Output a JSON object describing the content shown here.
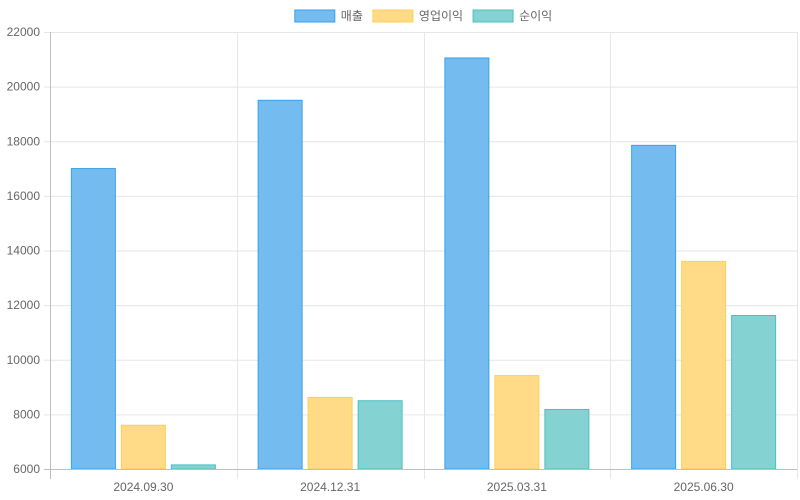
{
  "chart_data": {
    "type": "bar",
    "categories": [
      "2024.09.30",
      "2024.12.31",
      "2025.03.31",
      "2025.06.30"
    ],
    "series": [
      {
        "name": "매출",
        "values": [
          17000,
          19500,
          21050,
          17850
        ],
        "fill": "#74bcf0",
        "stroke": "#36a2eb"
      },
      {
        "name": "영업이익",
        "values": [
          7600,
          8620,
          9420,
          13600
        ],
        "fill": "#ffdb87",
        "stroke": "#ffce56"
      },
      {
        "name": "순이익",
        "values": [
          6150,
          8500,
          8180,
          11620
        ],
        "fill": "#84d2d2",
        "stroke": "#4bc0c0"
      }
    ],
    "ylim": [
      6000,
      22000
    ],
    "yticks": [
      6000,
      8000,
      10000,
      12000,
      14000,
      16000,
      18000,
      20000,
      22000
    ],
    "legend": "top-center",
    "grid": true
  }
}
